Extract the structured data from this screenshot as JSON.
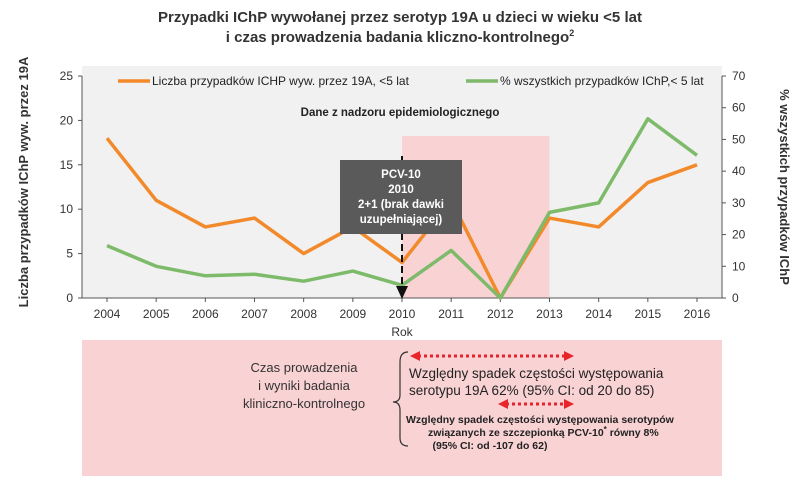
{
  "chart_data": {
    "type": "line",
    "title_line1": "Przypadki IChP wywołanej przez serotyp 19A u dzieci w wieku <5 lat",
    "title_line2": "i czas prowadzenia badania kliczno-kontrolnego",
    "title_superscript": "2",
    "x": [
      "2004",
      "2005",
      "2006",
      "2007",
      "2008",
      "2009",
      "2010",
      "2011",
      "2012",
      "2013",
      "2014",
      "2015",
      "2016"
    ],
    "xlabel": "Rok",
    "ylabel_left": "Liczba przypadków IChP wyw. przez 19A",
    "ylabel_right": "% wszystkich przypadków IChP",
    "ylim_left": [
      0,
      25
    ],
    "yticks_left": [
      "0",
      "5",
      "10",
      "15",
      "20",
      "25"
    ],
    "ylim_right": [
      0,
      70
    ],
    "yticks_right": [
      "0",
      "10",
      "20",
      "30",
      "40",
      "50",
      "60",
      "70"
    ],
    "series": [
      {
        "name": "Liczba przypadków ICHP wyw. przez 19A, <5 lat",
        "axis": "left",
        "color": "#f28a2c",
        "values": [
          18,
          11,
          8,
          9,
          5,
          8,
          4,
          11,
          0,
          9,
          8,
          13,
          15
        ]
      },
      {
        "name": "% wszystkich przypadków IChP,< 5 lat",
        "axis": "right",
        "color": "#7dbb6b",
        "values": [
          16.5,
          10,
          7,
          7.5,
          5.3,
          8.5,
          4,
          15,
          0,
          27,
          30,
          56.5,
          45
        ]
      }
    ],
    "shaded_period": {
      "from": "2010",
      "to": "2013",
      "color": "#f9d2d4"
    },
    "annotation": "Dane z nadzoru epidemiologicznego",
    "event": {
      "year": "2010",
      "lines": [
        "PCV-10",
        "2010",
        "2+1 (brak dawki",
        "uzupełniającej)"
      ]
    },
    "grid": false,
    "legend_position": "top"
  },
  "bottom_panel": {
    "left_label": [
      "Czas prowadzenia",
      "i wyniki badania",
      "kliniczno-kontrolnego"
    ],
    "result1": [
      "Względny spadek częstości występowania",
      "serotypu 19A 62% (95% CI: od 20 do 85)"
    ],
    "result2_line1": "Względny spadek częstości występowania serotypów",
    "result2_line2_pre": "związanych ze szczepionką PCV-10",
    "result2_line2_sup": "*",
    "result2_line2_post": " równy 8%",
    "result2_line3": "(95% CI: od -107 do 62)",
    "colors": {
      "panel": "#f9d2d4",
      "arrow": "#e8232a"
    }
  }
}
